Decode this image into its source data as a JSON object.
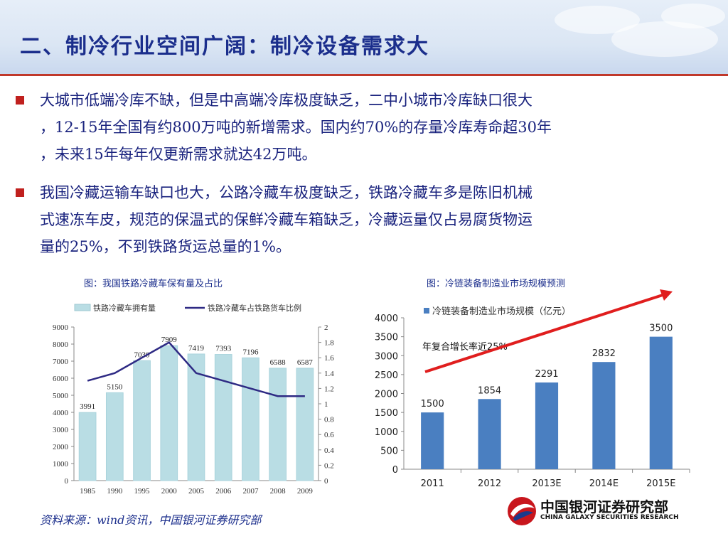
{
  "title": "二、制冷行业空间广阔：制冷设备需求大",
  "bullets": [
    {
      "lines": [
        "大城市低端冷库不缺，但是中高端冷库极度缺乏，二中小城市冷库缺口很大",
        "，12-15年全国有约800万吨的新增需求。国内约70%的存量冷库寿命超30年",
        "，未来15年每年仅更新需求就达42万吨。"
      ]
    },
    {
      "lines": [
        "我国冷藏运输车缺口也大，公路冷藏车极度缺乏，铁路冷藏车多是陈旧机械",
        "式速冻车皮，规范的保温式的保鲜冷藏车箱缺乏，冷藏运量仅占易腐货物运",
        "量的25%，不到铁路货运总量的1%。"
      ]
    }
  ],
  "captions": {
    "left": "图：我国铁路冷藏车保有量及占比",
    "right": "图：冷链装备制造业市场规模预测"
  },
  "source": "资料来源：wind资讯，中国银河证券研究部",
  "logo": {
    "cn": "中国银河证券研究部",
    "en": "CHINA GALAXY SECURITIES RESEARCH"
  },
  "chart_data": [
    {
      "type": "bar",
      "categories": [
        "1985",
        "1990",
        "1995",
        "2000",
        "2005",
        "2006",
        "2007",
        "2008",
        "2009"
      ],
      "series": [
        {
          "name": "铁路冷藏车拥有量",
          "type": "bar",
          "axis": "left",
          "values": [
            3991,
            5150,
            7030,
            7909,
            7419,
            7393,
            7196,
            6588,
            6587
          ],
          "color": "#b9dde4"
        },
        {
          "name": "铁路冷藏车占铁路货车比例",
          "type": "line",
          "axis": "right",
          "values": [
            1.3,
            1.4,
            1.6,
            1.8,
            1.4,
            1.3,
            1.2,
            1.1,
            1.1
          ],
          "color": "#2e2a84"
        }
      ],
      "ylim": [
        0,
        9000
      ],
      "yticks": [
        0,
        1000,
        2000,
        3000,
        4000,
        5000,
        6000,
        7000,
        8000,
        9000
      ],
      "y2lim": [
        0,
        2
      ],
      "y2ticks": [
        "0",
        "0.2",
        "0.4",
        "0.6",
        "0.8",
        "1",
        "1.2",
        "1.4",
        "1.6",
        "1.8",
        "2"
      ],
      "legend": "top",
      "grid": false
    },
    {
      "type": "bar",
      "categories": [
        "2011",
        "2012",
        "2013E",
        "2014E",
        "2015E"
      ],
      "series": [
        {
          "name": "冷链装备制造业市场规模（亿元）",
          "values": [
            1500,
            1854,
            2291,
            2832,
            3500
          ],
          "color": "#4a7fc1"
        }
      ],
      "ylim": [
        0,
        4000
      ],
      "yticks": [
        0,
        500,
        1000,
        1500,
        2000,
        2500,
        3000,
        3500,
        4000
      ],
      "annotation": "年复合增长率近25%",
      "legend": "top",
      "grid": false
    }
  ]
}
